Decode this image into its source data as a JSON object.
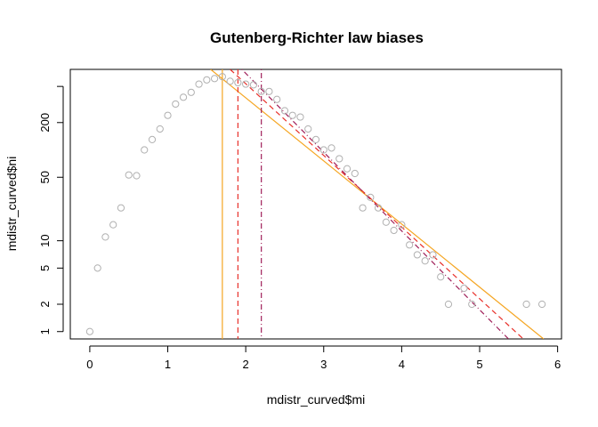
{
  "chart_data": {
    "type": "scatter",
    "title": "Gutenberg-Richter law biases",
    "xlabel": "mdistr_curved$mi",
    "ylabel": "mdistr_curved$ni",
    "xlim": [
      -0.25,
      6.05
    ],
    "ylim": [
      0.83,
      770
    ],
    "yscale": "log",
    "grid": false,
    "xticks": [
      0,
      1,
      2,
      3,
      4,
      5,
      6
    ],
    "xtick_labels": [
      "0",
      "1",
      "2",
      "3",
      "4",
      "5",
      "6"
    ],
    "yticks_labeled": [
      1,
      2,
      5,
      10,
      50,
      200
    ],
    "ytick_labels": [
      "1",
      "2",
      "5",
      "10",
      "50",
      "200"
    ],
    "yticks_minor": [
      500
    ],
    "points": {
      "x": [
        0.0,
        0.1,
        0.2,
        0.3,
        0.4,
        0.5,
        0.6,
        0.7,
        0.8,
        0.9,
        1.0,
        1.1,
        1.2,
        1.3,
        1.4,
        1.5,
        1.6,
        1.7,
        1.8,
        1.9,
        2.0,
        2.1,
        2.2,
        2.3,
        2.4,
        2.5,
        2.6,
        2.7,
        2.8,
        2.9,
        3.0,
        3.1,
        3.2,
        3.3,
        3.4,
        3.5,
        3.6,
        3.7,
        3.8,
        3.9,
        4.0,
        4.1,
        4.2,
        4.3,
        4.4,
        4.5,
        4.6,
        4.8,
        4.9,
        5.6,
        5.8
      ],
      "y": [
        1,
        5,
        11,
        15,
        23,
        53,
        52,
        100,
        130,
        170,
        240,
        320,
        380,
        430,
        530,
        590,
        610,
        640,
        570,
        550,
        530,
        520,
        440,
        440,
        360,
        270,
        240,
        230,
        170,
        130,
        100,
        105,
        80,
        62,
        55,
        23,
        30,
        23,
        16,
        13,
        15,
        9,
        7,
        6,
        7,
        4,
        2,
        3,
        2,
        2,
        2
      ],
      "color": "#b0b0b0"
    },
    "lines": [
      {
        "kind": "abline",
        "x1": 1.55,
        "y1": 770,
        "x2": 5.82,
        "y2": 0.83,
        "color": "#f5a623",
        "dash": "solid"
      },
      {
        "kind": "abline",
        "x1": 1.8,
        "y1": 770,
        "x2": 5.56,
        "y2": 0.83,
        "color": "#e8302a",
        "dash": "dashed"
      },
      {
        "kind": "abline",
        "x1": 1.95,
        "y1": 770,
        "x2": 5.37,
        "y2": 0.83,
        "color": "#a0205a",
        "dash": "dotdash"
      },
      {
        "kind": "vline",
        "x": 1.7,
        "color": "#f5a623",
        "dash": "solid"
      },
      {
        "kind": "vline",
        "x": 1.9,
        "color": "#e8302a",
        "dash": "dashed"
      },
      {
        "kind": "vline",
        "x": 2.2,
        "color": "#a0205a",
        "dash": "dotdash"
      }
    ]
  }
}
